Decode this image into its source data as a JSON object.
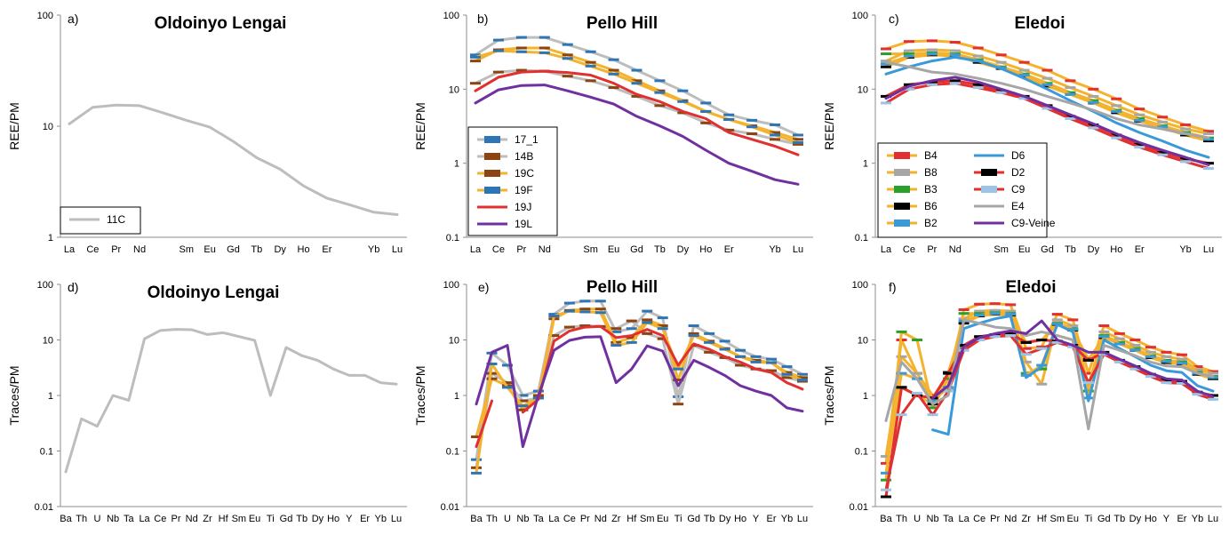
{
  "chart_data": [
    {
      "id": "a",
      "type": "line",
      "panel_label": "a)",
      "title": "Oldoinyo Lengai",
      "ylabel": "REE/PM",
      "yscale": "log",
      "ylim": [
        1,
        100
      ],
      "yticks": [
        "1",
        "10",
        "100"
      ],
      "categories": [
        "La",
        "Ce",
        "Pr",
        "Nd",
        "",
        "Sm",
        "Eu",
        "Gd",
        "Tb",
        "Dy",
        "Ho",
        "Er",
        "",
        "Yb",
        "Lu"
      ],
      "legend": "bottom-left",
      "series": [
        {
          "name": "11C",
          "color": "#bdbdbd",
          "marker": "none",
          "values": [
            10.5,
            14.8,
            15.5,
            15.3,
            13.2,
            11.3,
            9.8,
            7.3,
            5.2,
            4.1,
            2.9,
            2.25,
            1.95,
            1.68,
            1.6
          ]
        }
      ]
    },
    {
      "id": "b",
      "type": "line",
      "panel_label": "b)",
      "title": "Pello Hill",
      "ylabel": "REE/PM",
      "yscale": "log",
      "ylim": [
        0.1,
        100
      ],
      "yticks": [
        "0.1",
        "1",
        "10",
        "100"
      ],
      "categories": [
        "La",
        "Ce",
        "Pr",
        "Nd",
        "",
        "Sm",
        "Eu",
        "Gd",
        "Tb",
        "Dy",
        "Ho",
        "Er",
        "",
        "Yb",
        "Lu"
      ],
      "legend": "left-middle",
      "series": [
        {
          "name": "17_1",
          "color": "#bdbdbd",
          "marker": "#2e75b6",
          "values": [
            29,
            46,
            50,
            50,
            40,
            32,
            25,
            18,
            13,
            9.5,
            6.5,
            4.5,
            3.8,
            3.3,
            2.4
          ]
        },
        {
          "name": "14B",
          "color": "#bdbdbd",
          "marker": "#8b4513",
          "values": [
            12,
            17,
            18,
            17.5,
            15,
            13,
            10.5,
            8,
            6,
            4.8,
            3.5,
            2.8,
            2.5,
            2.1,
            1.8
          ]
        },
        {
          "name": "19C",
          "color": "#f4b32f",
          "marker": "#8b4513",
          "values": [
            24,
            34,
            36,
            36,
            29,
            23,
            18,
            13,
            9.5,
            7,
            5,
            3.9,
            3.2,
            2.6,
            2.1
          ]
        },
        {
          "name": "19F",
          "color": "#f4b32f",
          "marker": "#2e75b6",
          "values": [
            27,
            33,
            32,
            31,
            26,
            20.5,
            16,
            12,
            9,
            6.8,
            5,
            3.9,
            3.1,
            2.4,
            1.9
          ]
        },
        {
          "name": "19J",
          "color": "#e03030",
          "marker": "none",
          "values": [
            9.5,
            14.5,
            17,
            17.5,
            16.8,
            15.5,
            12,
            8.5,
            6.8,
            5,
            4,
            2.6,
            2.1,
            1.7,
            1.3
          ]
        },
        {
          "name": "19L",
          "color": "#7030a0",
          "marker": "none",
          "values": [
            6.5,
            9.8,
            11.2,
            11.4,
            9.5,
            7.8,
            6.3,
            4.3,
            3.2,
            2.3,
            1.5,
            1.0,
            0.78,
            0.6,
            0.52
          ]
        }
      ]
    },
    {
      "id": "c",
      "type": "line",
      "panel_label": "c)",
      "title": "Eledoi",
      "ylabel": "REE/PM",
      "yscale": "log",
      "ylim": [
        0.1,
        100
      ],
      "yticks": [
        "0.1",
        "1",
        "10",
        "100"
      ],
      "categories": [
        "La",
        "Ce",
        "Pr",
        "Nd",
        "",
        "Sm",
        "Eu",
        "Gd",
        "Tb",
        "Dy",
        "Ho",
        "Er",
        "",
        "Yb",
        "Lu"
      ],
      "legend": "bottom-left",
      "series": [
        {
          "name": "B4",
          "color": "#f4b32f",
          "marker": "#e03030",
          "values": [
            35,
            44,
            45,
            43,
            36,
            29,
            23,
            18,
            13,
            10,
            7.4,
            5.4,
            4.2,
            3.3,
            2.7
          ]
        },
        {
          "name": "B8",
          "color": "#f4b32f",
          "marker": "#a6a6a6",
          "values": [
            24,
            33,
            34,
            33,
            28,
            23,
            18,
            14,
            10.5,
            8,
            6,
            4.5,
            3.6,
            2.9,
            2.5
          ]
        },
        {
          "name": "B3",
          "color": "#f4b32f",
          "marker": "#2ca02c",
          "values": [
            30,
            30,
            31,
            30,
            25,
            20,
            16,
            12,
            9,
            7,
            5.2,
            4,
            3.2,
            2.6,
            2.2
          ]
        },
        {
          "name": "B6",
          "color": "#f4b32f",
          "marker": "#000000",
          "values": [
            20,
            27,
            29,
            28,
            23,
            19,
            15,
            11,
            8.5,
            6.5,
            4.8,
            3.7,
            3.0,
            2.4,
            2.0
          ]
        },
        {
          "name": "B2",
          "color": "#f4b32f",
          "marker": "#3a9ad9",
          "values": [
            22,
            28,
            30,
            29,
            24,
            19.5,
            15.5,
            11.5,
            8.5,
            6.6,
            5,
            3.8,
            3.1,
            2.5,
            2.1
          ]
        },
        {
          "name": "D6",
          "color": "#3a9ad9",
          "marker": "none",
          "values": [
            16,
            20,
            24,
            27,
            24,
            19,
            14,
            10,
            7,
            5,
            3.5,
            2.6,
            2.0,
            1.5,
            1.2
          ]
        },
        {
          "name": "D2",
          "color": "#e03030",
          "marker": "#000000",
          "values": [
            8,
            11.5,
            12.5,
            13,
            11.5,
            9.5,
            8,
            6,
            4.3,
            3.3,
            2.4,
            1.8,
            1.4,
            1.15,
            1.0
          ]
        },
        {
          "name": "C9",
          "color": "#e03030",
          "marker": "#9dc3e6",
          "values": [
            6.5,
            10,
            11.5,
            12,
            10.5,
            9,
            7.5,
            5.5,
            4,
            3,
            2.2,
            1.65,
            1.3,
            1.05,
            0.85
          ]
        },
        {
          "name": "E4",
          "color": "#a6a6a6",
          "marker": "none",
          "values": [
            23,
            20,
            17,
            16,
            14,
            12,
            10,
            8,
            6.5,
            5.2,
            4,
            3.3,
            2.9,
            2.5,
            2.2
          ]
        },
        {
          "name": "C9-Veine",
          "color": "#7030a0",
          "marker": "none",
          "values": [
            7.5,
            11,
            13,
            14.5,
            12.5,
            10,
            8,
            6,
            4.5,
            3.4,
            2.5,
            1.9,
            1.5,
            1.2,
            0.95
          ]
        }
      ]
    },
    {
      "id": "d",
      "type": "line",
      "panel_label": "d)",
      "title": "Oldoinyo Lengai",
      "ylabel": "Traces/PM",
      "yscale": "log",
      "ylim": [
        0.01,
        100
      ],
      "yticks": [
        "0.01",
        "0.1",
        "1",
        "10",
        "100"
      ],
      "categories": [
        "Ba",
        "Th",
        "U",
        "Nb",
        "Ta",
        "La",
        "Ce",
        "Pr",
        "Nd",
        "Zr",
        "Hf",
        "Sm",
        "Eu",
        "Ti",
        "Gd",
        "Tb",
        "Dy",
        "Ho",
        "Y",
        "Er",
        "Yb",
        "Lu"
      ],
      "series": [
        {
          "name": "11C",
          "color": "#bdbdbd",
          "marker": "none",
          "values": [
            0.042,
            0.38,
            0.28,
            1.0,
            0.82,
            10.5,
            14.8,
            15.5,
            15.3,
            12.5,
            13.5,
            11.5,
            9.8,
            1.0,
            7.3,
            5.2,
            4.3,
            3.0,
            2.3,
            2.3,
            1.7,
            1.6
          ]
        }
      ]
    },
    {
      "id": "e",
      "type": "line",
      "panel_label": "e)",
      "title": "Pello Hill",
      "ylabel": "Traces/PM",
      "yscale": "log",
      "ylim": [
        0.01,
        100
      ],
      "yticks": [
        "0.01",
        "0.1",
        "1",
        "10",
        "100"
      ],
      "categories": [
        "Ba",
        "Th",
        "U",
        "Nb",
        "Ta",
        "La",
        "Ce",
        "Pr",
        "Nd",
        "Zr",
        "Hf",
        "Sm",
        "Eu",
        "Ti",
        "Gd",
        "Tb",
        "Dy",
        "Ho",
        "Y",
        "Er",
        "Yb",
        "Lu"
      ],
      "series": [
        {
          "name": "17_1",
          "color": "#bdbdbd",
          "marker": "#2e75b6",
          "values": [
            0.07,
            5.8,
            3.5,
            1.0,
            1.2,
            29,
            46,
            50,
            50,
            14,
            16,
            33,
            25,
            0.95,
            18,
            13,
            9.5,
            6.5,
            5,
            4.5,
            3.3,
            2.4
          ]
        },
        {
          "name": "14B",
          "color": "#bdbdbd",
          "marker": "#8b4513",
          "values": [
            0.05,
            2.5,
            1.7,
            0.8,
            0.9,
            12,
            17,
            18,
            17.5,
            16,
            22,
            13,
            10.5,
            0.7,
            8,
            6,
            4.8,
            3.5,
            3,
            2.8,
            2.1,
            1.8
          ]
        },
        {
          "name": "19C",
          "color": "#f4b32f",
          "marker": "#8b4513",
          "values": [
            0.18,
            2.0,
            1.5,
            0.55,
            1.0,
            24,
            34,
            36,
            36,
            9,
            11,
            23,
            18,
            1.9,
            13,
            9.5,
            7,
            5,
            4.3,
            3.9,
            2.6,
            2.1
          ]
        },
        {
          "name": "19F",
          "color": "#f4b32f",
          "marker": "#2e75b6",
          "values": [
            0.04,
            3.7,
            1.4,
            0.65,
            0.9,
            27,
            33,
            32,
            31,
            8,
            9,
            20.5,
            16,
            3,
            12,
            9,
            6.8,
            5,
            4,
            3.9,
            2.4,
            1.9
          ]
        },
        {
          "name": "19J",
          "color": "#e03030",
          "marker": "none",
          "values": [
            0.12,
            0.8,
            null,
            0.5,
            0.85,
            9.5,
            14.5,
            17,
            17.5,
            11,
            12,
            15.5,
            12,
            3.5,
            8.5,
            6.8,
            5,
            4,
            3,
            2.6,
            1.7,
            1.3
          ]
        },
        {
          "name": "19L",
          "color": "#7030a0",
          "marker": "none",
          "values": [
            0.7,
            6,
            8,
            0.12,
            1.0,
            6.5,
            9.8,
            11.2,
            11.4,
            1.7,
            3,
            7.8,
            6.3,
            1.5,
            4.3,
            3.2,
            2.3,
            1.5,
            1.2,
            1.0,
            0.6,
            0.52
          ]
        }
      ]
    },
    {
      "id": "f",
      "type": "line",
      "panel_label": "f)",
      "title": "Eledoi",
      "ylabel": "Traces/PM",
      "yscale": "log",
      "ylim": [
        0.01,
        100
      ],
      "yticks": [
        "0.01",
        "0.1",
        "1",
        "10",
        "100"
      ],
      "categories": [
        "Ba",
        "Th",
        "U",
        "Nb",
        "Ta",
        "La",
        "Ce",
        "Pr",
        "Nd",
        "Zr",
        "Hf",
        "Sm",
        "Eu",
        "Ti",
        "Gd",
        "Tb",
        "Dy",
        "Ho",
        "Y",
        "Er",
        "Yb",
        "Lu"
      ],
      "series": [
        {
          "name": "B4",
          "color": "#f4b32f",
          "marker": "#e03030",
          "values": [
            0.06,
            10,
            2.5,
            1.0,
            1.3,
            35,
            44,
            45,
            43,
            7,
            7.5,
            29,
            23,
            2.5,
            18,
            13,
            10,
            7.4,
            6,
            5.4,
            3.3,
            2.7
          ]
        },
        {
          "name": "B8",
          "color": "#f4b32f",
          "marker": "#a6a6a6",
          "values": [
            0.08,
            5,
            2.5,
            0.9,
            1.3,
            24,
            33,
            34,
            33,
            4,
            1.6,
            23,
            18,
            1.5,
            14,
            10.5,
            8,
            6,
            5,
            4.5,
            2.9,
            2.5
          ]
        },
        {
          "name": "B3",
          "color": "#f4b32f",
          "marker": "#2ca02c",
          "values": [
            0.03,
            14,
            10,
            0.6,
            2.0,
            30,
            30,
            31,
            30,
            2.5,
            3,
            20,
            16,
            1.2,
            12,
            9,
            7,
            5.2,
            4.3,
            4,
            2.6,
            2.2
          ]
        },
        {
          "name": "B6",
          "color": "#f4b32f",
          "marker": "#000000",
          "values": [
            0.015,
            1.4,
            1.0,
            0.7,
            2.6,
            20,
            27,
            29,
            28,
            9,
            10,
            19,
            15,
            4.5,
            11,
            8.5,
            6.5,
            4.8,
            3.9,
            3.7,
            2.4,
            2.0
          ]
        },
        {
          "name": "B2",
          "color": "#f4b32f",
          "marker": "#3a9ad9",
          "values": [
            0.04,
            2.5,
            2.0,
            0.8,
            1.4,
            22,
            28,
            30,
            29,
            2.3,
            3.5,
            19.5,
            15.5,
            0.9,
            11.5,
            8.5,
            6.6,
            5,
            4.1,
            3.8,
            2.5,
            2.1
          ]
        },
        {
          "name": "D6",
          "color": "#3a9ad9",
          "marker": "none",
          "values": [
            null,
            null,
            null,
            0.24,
            0.2,
            16,
            20,
            24,
            27,
            2.1,
            3.3,
            19,
            14,
            0.8,
            10,
            7,
            5,
            3.5,
            2.8,
            2.6,
            1.5,
            1.2
          ]
        },
        {
          "name": "D2",
          "color": "#e03030",
          "marker": "#000000",
          "values": [
            0.015,
            1.4,
            1.0,
            0.9,
            2.5,
            8,
            11.5,
            12.5,
            13,
            9,
            10,
            9.5,
            8,
            4.3,
            6,
            4.3,
            3.3,
            2.4,
            1.9,
            1.8,
            1.15,
            1.0
          ]
        },
        {
          "name": "C9",
          "color": "#e03030",
          "marker": "#9dc3e6",
          "values": [
            0.02,
            0.45,
            1.1,
            0.45,
            1.2,
            6.5,
            10,
            11.5,
            12,
            5.5,
            7,
            9,
            7.5,
            1.7,
            5.5,
            4,
            3,
            2.2,
            1.7,
            1.65,
            1.05,
            0.85
          ]
        },
        {
          "name": "E4",
          "color": "#a6a6a6",
          "marker": "none",
          "values": [
            0.35,
            4,
            2.0,
            0.7,
            1.0,
            23,
            20,
            17,
            16,
            12,
            14,
            12,
            10,
            0.25,
            8,
            6.5,
            5.2,
            4,
            3.4,
            3.3,
            2.5,
            2.2
          ]
        },
        {
          "name": "C9-Veine",
          "color": "#7030a0",
          "marker": "none",
          "values": [
            null,
            null,
            null,
            0.9,
            1.5,
            7.5,
            11,
            13,
            14.5,
            13,
            22,
            10,
            8,
            6,
            6,
            4.5,
            3.4,
            2.5,
            2.0,
            1.9,
            1.2,
            0.95
          ]
        }
      ]
    }
  ]
}
